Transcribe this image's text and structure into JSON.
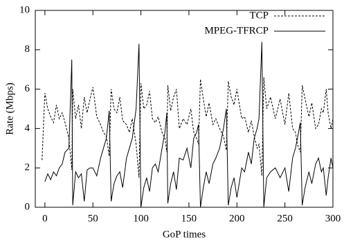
{
  "chart_data": {
    "type": "line",
    "x_label": "GoP times",
    "y_label": "Rate (Mbps)",
    "xlim": [
      -10,
      300
    ],
    "ylim": [
      0,
      10
    ],
    "xticks": [
      0,
      50,
      100,
      150,
      200,
      250,
      300
    ],
    "yticks": [
      0,
      2,
      4,
      6,
      8,
      10
    ],
    "legend": "top-right",
    "x": [
      -3,
      0,
      3,
      6,
      9,
      12,
      15,
      18,
      21,
      25,
      28,
      29,
      32,
      35,
      38,
      41,
      44,
      47,
      50,
      54,
      58,
      61,
      64,
      67,
      69,
      72,
      75,
      78,
      81,
      85,
      88,
      91,
      95,
      98,
      100,
      103,
      106,
      109,
      112,
      115,
      118,
      122,
      125,
      127,
      128,
      131,
      134,
      137,
      140,
      144,
      148,
      152,
      155,
      158,
      160,
      162,
      165,
      168,
      171,
      175,
      178,
      182,
      186,
      189,
      191,
      194,
      197,
      200,
      205,
      208,
      212,
      215,
      218,
      221,
      223,
      226,
      228,
      231,
      235,
      240,
      245,
      250,
      254,
      258,
      261,
      263,
      266,
      268,
      271,
      275,
      278,
      282,
      285,
      288,
      290,
      293,
      295,
      298,
      300
    ],
    "series": [
      {
        "name": "TCP",
        "color": "#000000",
        "line_style": "dashed",
        "values": [
          2.4,
          5.8,
          5.0,
          4.6,
          4.3,
          5.2,
          4.5,
          4.8,
          4.3,
          3.5,
          1.9,
          6.0,
          4.5,
          5.2,
          4.0,
          5.6,
          4.8,
          5.5,
          6.1,
          4.6,
          4.2,
          3.8,
          3.6,
          2.6,
          6.0,
          5.0,
          4.8,
          5.6,
          4.4,
          4.2,
          3.8,
          4.5,
          3.2,
          1.5,
          6.3,
          5.0,
          5.2,
          5.9,
          4.5,
          4.3,
          4.6,
          3.8,
          3.5,
          2.8,
          6.2,
          4.9,
          5.6,
          6.0,
          4.0,
          4.5,
          4.2,
          5.0,
          3.8,
          3.5,
          3.2,
          6.5,
          5.5,
          4.6,
          5.3,
          4.2,
          4.5,
          4.0,
          3.6,
          2.9,
          6.4,
          5.6,
          5.2,
          6.0,
          4.5,
          4.6,
          3.8,
          4.4,
          3.6,
          3.0,
          3.2,
          1.6,
          6.6,
          5.0,
          5.6,
          4.5,
          5.5,
          4.2,
          5.8,
          4.0,
          3.8,
          3.2,
          2.8,
          6.2,
          5.5,
          4.6,
          5.3,
          4.0,
          4.2,
          5.0,
          4.8,
          6.0,
          4.8,
          4.0,
          4.5
        ]
      },
      {
        "name": "MPEG-TFRCP",
        "color": "#000000",
        "line_style": "solid",
        "values": [
          null,
          1.3,
          1.7,
          1.4,
          1.8,
          1.6,
          2.0,
          2.2,
          2.8,
          3.0,
          7.5,
          0.1,
          1.8,
          1.5,
          1.7,
          0.3,
          1.9,
          2.0,
          2.0,
          1.6,
          2.5,
          3.0,
          3.5,
          4.9,
          0.3,
          1.2,
          1.6,
          1.8,
          1.0,
          2.5,
          3.0,
          3.5,
          5.0,
          8.3,
          0.0,
          1.0,
          1.5,
          0.8,
          2.0,
          2.2,
          1.8,
          3.0,
          3.8,
          4.8,
          0.2,
          1.2,
          1.8,
          0.9,
          2.5,
          2.4,
          3.0,
          2.0,
          3.5,
          3.8,
          4.2,
          0.0,
          1.0,
          1.8,
          1.2,
          2.2,
          2.5,
          3.0,
          4.0,
          5.0,
          0.1,
          1.0,
          1.5,
          0.5,
          2.0,
          1.8,
          2.8,
          2.2,
          3.5,
          4.0,
          4.5,
          8.4,
          0.0,
          1.5,
          1.8,
          2.0,
          1.5,
          2.0,
          0.8,
          2.5,
          3.0,
          3.5,
          4.3,
          0.1,
          1.0,
          1.8,
          1.2,
          2.2,
          2.5,
          1.8,
          2.0,
          0.6,
          1.5,
          2.5,
          2.0
        ]
      }
    ]
  }
}
